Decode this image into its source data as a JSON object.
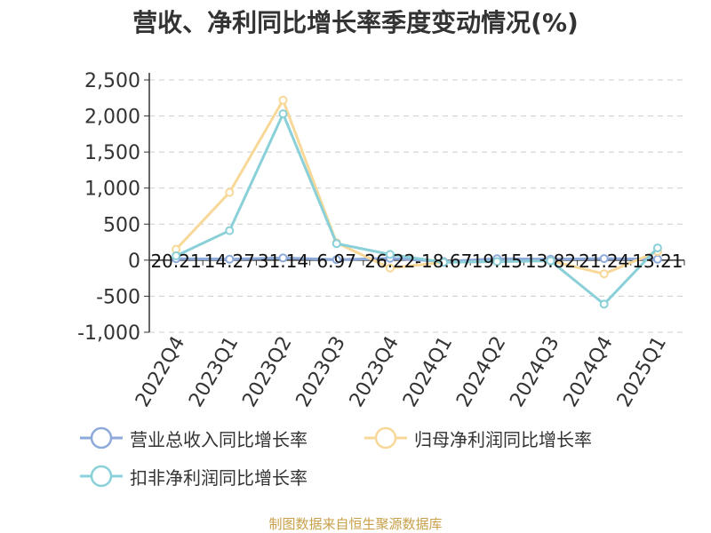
{
  "chart_data": {
    "type": "line",
    "title": "营收、净利同比增长率季度变动情况(%)",
    "categories": [
      "2022Q4",
      "2023Q1",
      "2023Q2",
      "2023Q3",
      "2023Q4",
      "2024Q1",
      "2024Q2",
      "2024Q3",
      "2024Q4",
      "2025Q1"
    ],
    "ylim": [
      -1000,
      2500
    ],
    "yticks": [
      -1000,
      -500,
      0,
      500,
      1000,
      1500,
      2000,
      2500
    ],
    "ytick_labels": [
      "-1,000",
      "-500",
      "0",
      "500",
      "1,000",
      "1,500",
      "2,000",
      "2,500"
    ],
    "grid": true,
    "legend_position": "bottom",
    "series": [
      {
        "name": "营业总收入同比增长率",
        "color": "#8eaadb",
        "values": [
          20.21,
          14.27,
          31.14,
          6.97,
          26.22,
          -18.67,
          19.15,
          13.82,
          21.24,
          13.21
        ],
        "data_labels": [
          "20.21",
          "14.27",
          "31.14",
          "6.97",
          "26.22",
          "-18.67",
          "19.15",
          "13.82",
          "21.24",
          "13.21"
        ]
      },
      {
        "name": "归母净利润同比增长率",
        "color": "#f8d898",
        "values": [
          150,
          940,
          2220,
          240,
          -110,
          -30,
          -20,
          -10,
          -190,
          120
        ]
      },
      {
        "name": "扣非净利润同比增长率",
        "color": "#8ad0d8",
        "values": [
          60,
          410,
          2030,
          230,
          80,
          -30,
          -20,
          -10,
          -610,
          170
        ]
      }
    ]
  },
  "source_note": "制图数据来自恒生聚源数据库"
}
